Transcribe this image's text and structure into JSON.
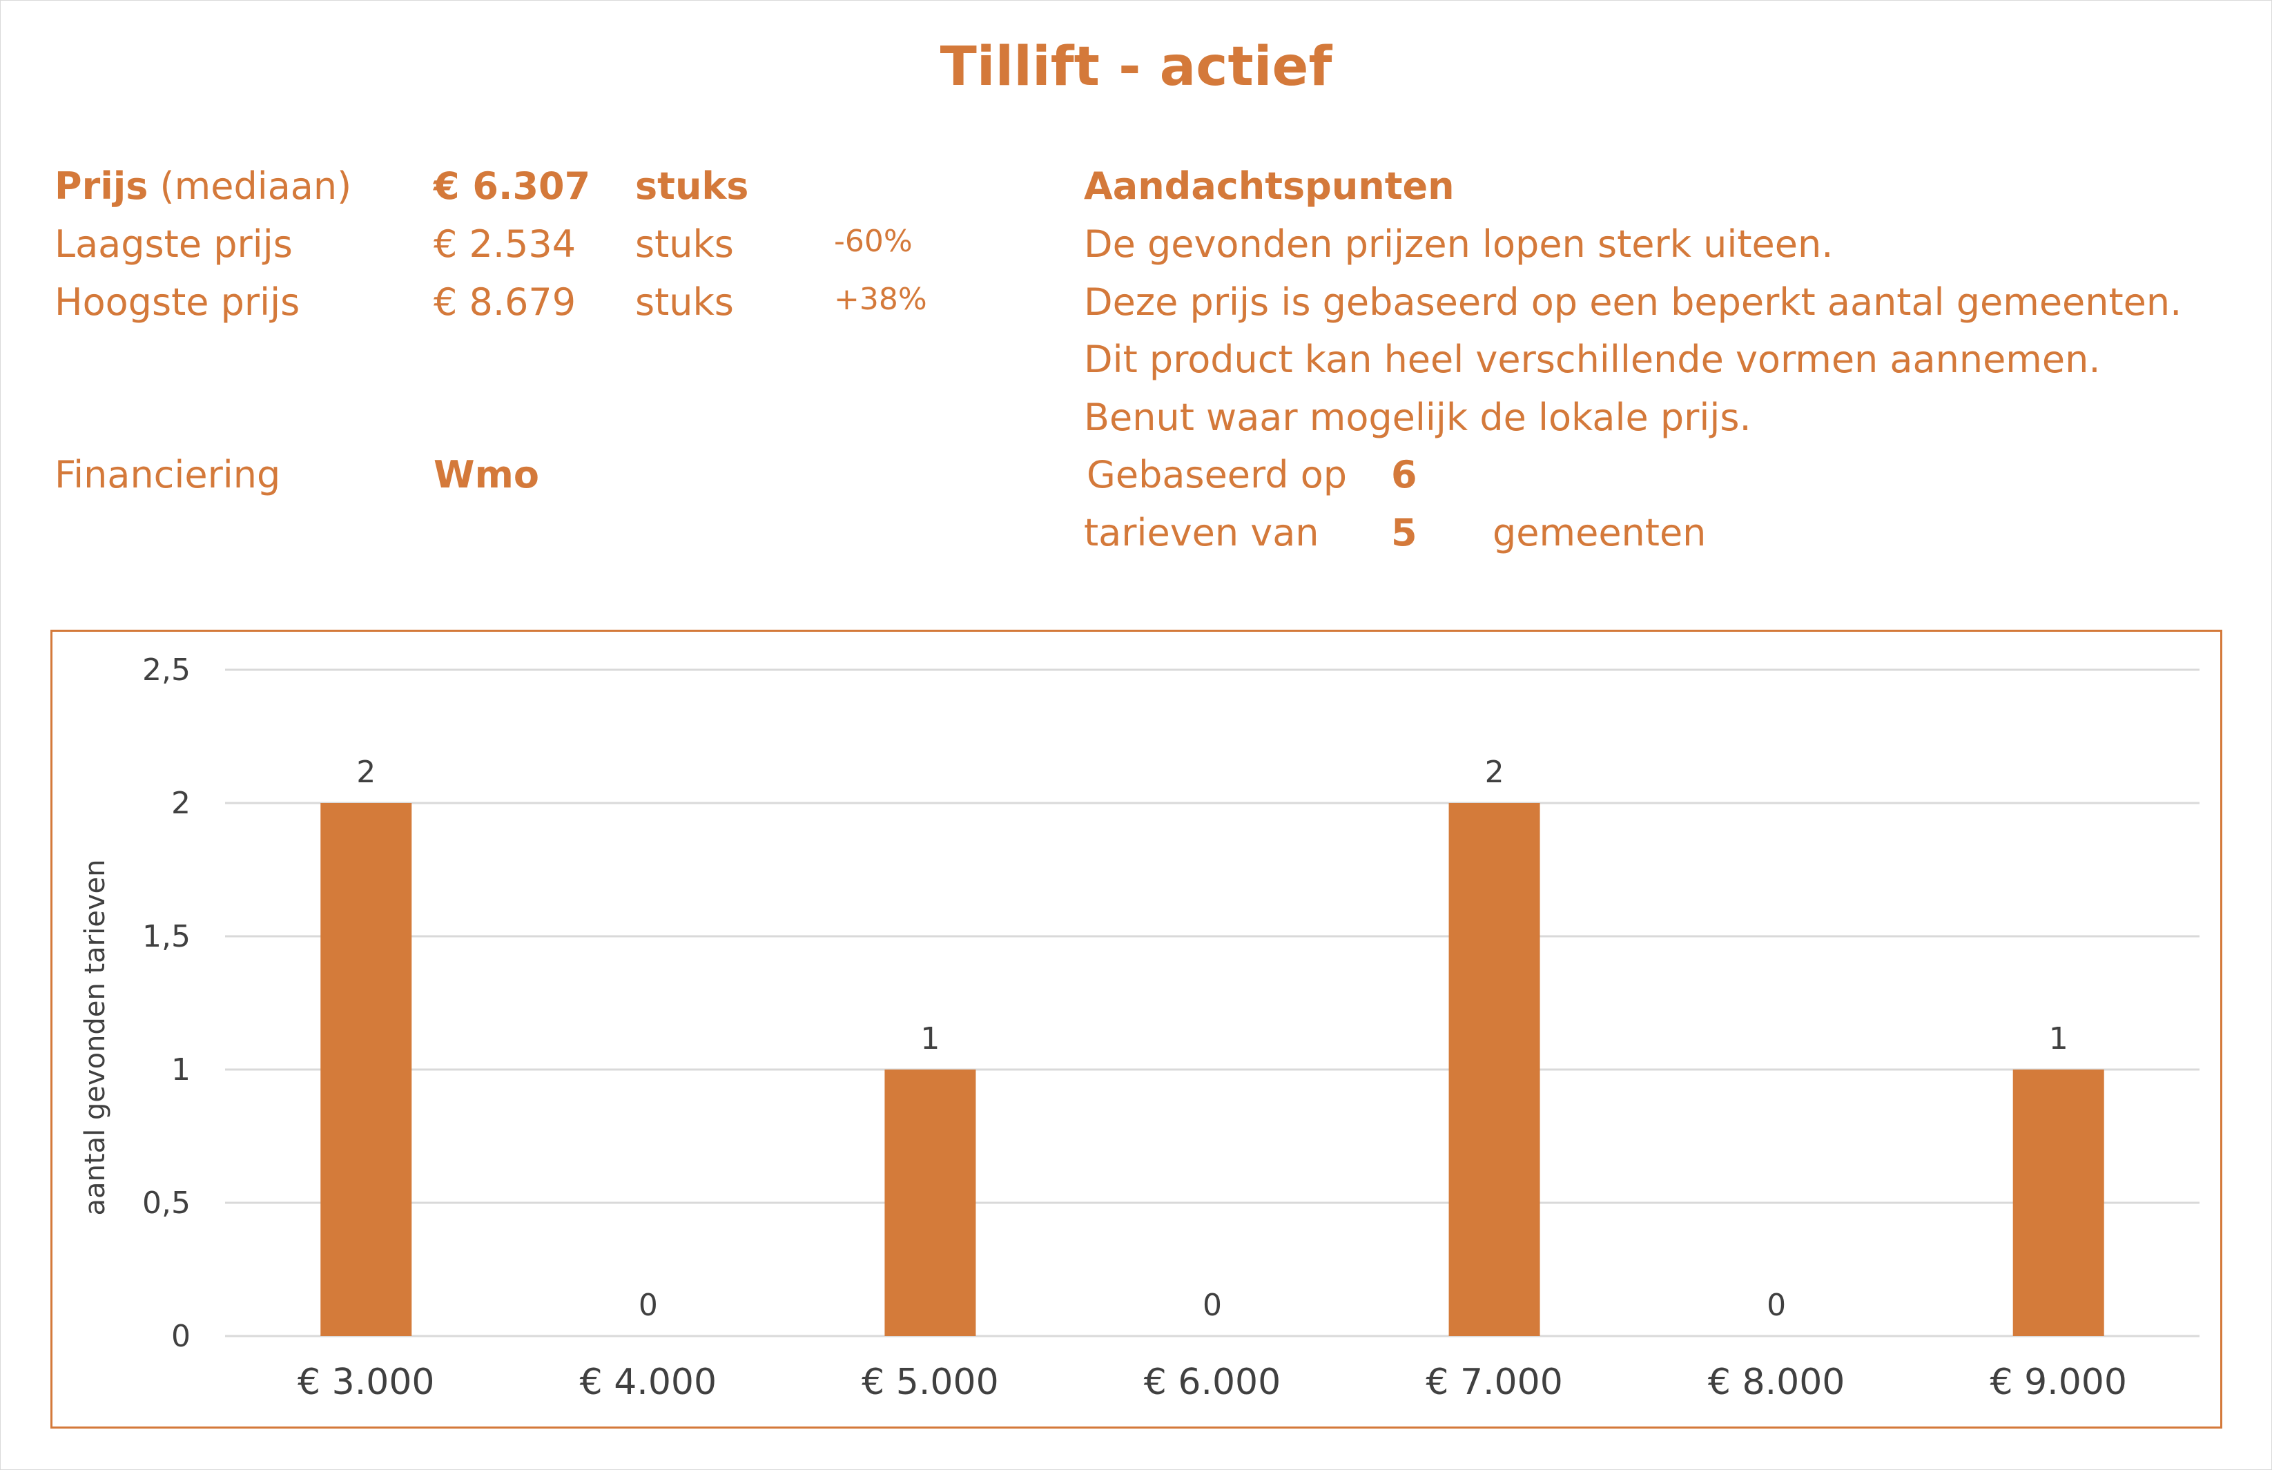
{
  "title": "Tillift - actief",
  "price": {
    "median_label_bold": "Prijs",
    "median_label_rest": "(mediaan)",
    "median_value": "€ 6.307",
    "median_unit": "stuks",
    "low_label": "Laagste prijs",
    "low_value": "€ 2.534",
    "low_unit": "stuks",
    "low_pct": "-60%",
    "high_label": "Hoogste prijs",
    "high_value": "€ 8.679",
    "high_unit": "stuks",
    "high_pct": "+38%",
    "financing_label": "Financiering",
    "financing_value": "Wmo"
  },
  "attention": {
    "heading": "Aandachtspunten",
    "lines": [
      "De gevonden prijzen lopen sterk uiteen.",
      "Deze prijs is gebaseerd op een beperkt aantal gemeenten.",
      "Dit product kan heel verschillende vormen aannemen.",
      "Benut waar mogelijk de lokale prijs."
    ],
    "based_on_label": "Gebaseerd op",
    "based_on_value": "6",
    "rates_from_label": "tarieven van",
    "rates_from_value": "5",
    "municipalities_label": "gemeenten"
  },
  "colors": {
    "accent": "#d4793a",
    "bar": "#d47b3a",
    "grid": "#d9d9d9",
    "axis_text": "#404040"
  },
  "chart_data": {
    "type": "bar",
    "categories": [
      "€ 3.000",
      "€ 4.000",
      "€ 5.000",
      "€ 6.000",
      "€ 7.000",
      "€ 8.000",
      "€ 9.000"
    ],
    "values": [
      2,
      0,
      1,
      0,
      2,
      0,
      1
    ],
    "data_labels": [
      "2",
      "0",
      "1",
      "0",
      "2",
      "0",
      "1"
    ],
    "title": "",
    "xlabel": "",
    "ylabel": "aantal gevonden tarieven",
    "ylim": [
      0,
      2.5
    ],
    "yticks": [
      0,
      0.5,
      1,
      1.5,
      2,
      2.5
    ],
    "ytick_labels": [
      "0",
      "0,5",
      "1",
      "1,5",
      "2",
      "2,5"
    ],
    "grid": true,
    "legend": "none"
  }
}
